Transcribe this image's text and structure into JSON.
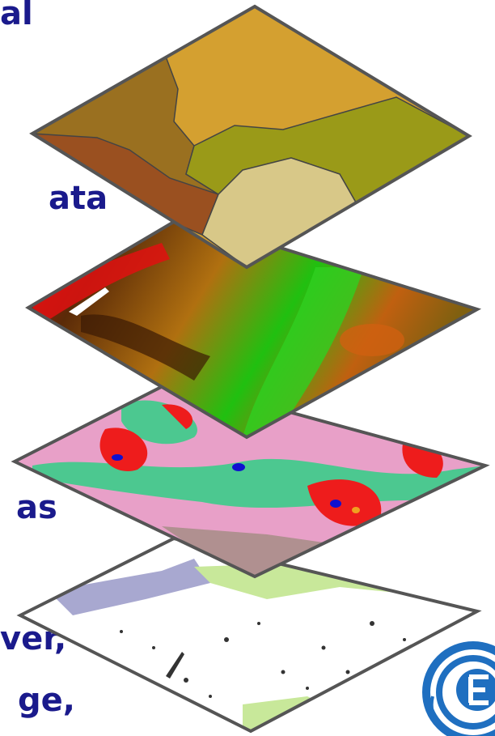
{
  "texts": [
    "al",
    "ata",
    "as",
    "ver,",
    "ge,"
  ]
}
